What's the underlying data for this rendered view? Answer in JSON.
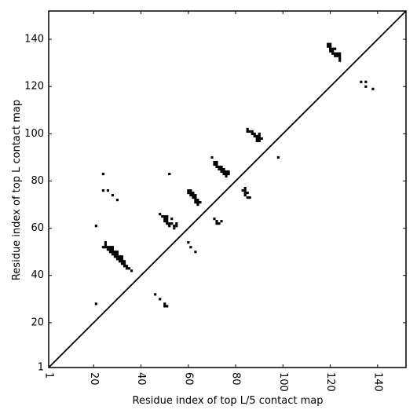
{
  "chart_data": {
    "type": "scatter",
    "title": "",
    "xlabel": "Residue index of top L/5 contact map",
    "ylabel": "Residue index of top L contact map",
    "xlim": [
      1,
      152
    ],
    "ylim": [
      1,
      152
    ],
    "xticks": [
      1,
      20,
      40,
      60,
      80,
      100,
      120,
      140
    ],
    "yticks": [
      1,
      20,
      40,
      60,
      80,
      100,
      120,
      140
    ],
    "xtick_labels": [
      "1",
      "20",
      "40",
      "60",
      "80",
      "100",
      "120",
      "140"
    ],
    "ytick_labels": [
      "1",
      "20",
      "40",
      "60",
      "80",
      "100",
      "120",
      "140"
    ],
    "xtick_rotation": 90,
    "grid": false,
    "diagonal_line": {
      "from": [
        1,
        1
      ],
      "to": [
        152,
        152
      ],
      "color": "#000000"
    },
    "marker": {
      "shape": "square",
      "color": "#000000"
    },
    "points": [
      [
        24,
        83
      ],
      [
        52,
        83
      ],
      [
        24,
        76
      ],
      [
        26,
        76
      ],
      [
        28,
        74
      ],
      [
        30,
        72
      ],
      [
        21,
        61
      ],
      [
        24,
        52
      ],
      [
        25,
        52
      ],
      [
        25,
        53
      ],
      [
        25,
        54
      ],
      [
        26,
        51
      ],
      [
        26,
        52
      ],
      [
        27,
        50
      ],
      [
        27,
        51
      ],
      [
        27,
        52
      ],
      [
        28,
        49
      ],
      [
        28,
        50
      ],
      [
        28,
        51
      ],
      [
        28,
        52
      ],
      [
        29,
        48
      ],
      [
        29,
        49
      ],
      [
        29,
        50
      ],
      [
        30,
        47
      ],
      [
        30,
        48
      ],
      [
        30,
        49
      ],
      [
        30,
        50
      ],
      [
        31,
        46
      ],
      [
        31,
        47
      ],
      [
        31,
        48
      ],
      [
        32,
        45
      ],
      [
        32,
        46
      ],
      [
        32,
        47
      ],
      [
        32,
        48
      ],
      [
        33,
        44
      ],
      [
        33,
        45
      ],
      [
        33,
        46
      ],
      [
        34,
        43
      ],
      [
        34,
        44
      ],
      [
        35,
        43
      ],
      [
        36,
        42
      ],
      [
        21,
        28
      ],
      [
        46,
        32
      ],
      [
        48,
        30
      ],
      [
        50,
        28
      ],
      [
        50,
        27
      ],
      [
        51,
        27
      ],
      [
        48,
        66
      ],
      [
        49,
        65
      ],
      [
        50,
        63
      ],
      [
        50,
        64
      ],
      [
        50,
        65
      ],
      [
        51,
        62
      ],
      [
        51,
        63
      ],
      [
        51,
        64
      ],
      [
        51,
        65
      ],
      [
        52,
        61
      ],
      [
        52,
        62
      ],
      [
        53,
        62
      ],
      [
        53,
        64
      ],
      [
        54,
        60
      ],
      [
        54,
        61
      ],
      [
        55,
        61
      ],
      [
        55,
        62
      ],
      [
        60,
        54
      ],
      [
        61,
        52
      ],
      [
        63,
        50
      ],
      [
        60,
        75
      ],
      [
        60,
        76
      ],
      [
        61,
        74
      ],
      [
        61,
        75
      ],
      [
        61,
        76
      ],
      [
        62,
        73
      ],
      [
        62,
        74
      ],
      [
        62,
        75
      ],
      [
        63,
        71
      ],
      [
        63,
        72
      ],
      [
        63,
        73
      ],
      [
        63,
        74
      ],
      [
        64,
        70
      ],
      [
        64,
        71
      ],
      [
        64,
        72
      ],
      [
        65,
        71
      ],
      [
        70,
        90
      ],
      [
        71,
        88
      ],
      [
        71,
        87
      ],
      [
        72,
        86
      ],
      [
        72,
        87
      ],
      [
        72,
        88
      ],
      [
        73,
        85
      ],
      [
        73,
        86
      ],
      [
        74,
        84
      ],
      [
        74,
        85
      ],
      [
        74,
        86
      ],
      [
        75,
        83
      ],
      [
        75,
        84
      ],
      [
        75,
        85
      ],
      [
        76,
        82
      ],
      [
        76,
        83
      ],
      [
        76,
        84
      ],
      [
        77,
        83
      ],
      [
        77,
        84
      ],
      [
        71,
        64
      ],
      [
        72,
        62
      ],
      [
        72,
        63
      ],
      [
        73,
        62
      ],
      [
        74,
        63
      ],
      [
        83,
        76
      ],
      [
        84,
        74
      ],
      [
        84,
        75
      ],
      [
        84,
        76
      ],
      [
        84,
        77
      ],
      [
        85,
        75
      ],
      [
        85,
        73
      ],
      [
        86,
        73
      ],
      [
        85,
        101
      ],
      [
        85,
        102
      ],
      [
        86,
        101
      ],
      [
        87,
        100
      ],
      [
        87,
        101
      ],
      [
        88,
        99
      ],
      [
        88,
        100
      ],
      [
        89,
        97
      ],
      [
        89,
        98
      ],
      [
        89,
        99
      ],
      [
        90,
        97
      ],
      [
        90,
        98
      ],
      [
        90,
        99
      ],
      [
        90,
        100
      ],
      [
        91,
        98
      ],
      [
        98,
        90
      ],
      [
        119,
        137
      ],
      [
        119,
        138
      ],
      [
        120,
        135
      ],
      [
        120,
        136
      ],
      [
        120,
        137
      ],
      [
        120,
        138
      ],
      [
        121,
        134
      ],
      [
        121,
        135
      ],
      [
        121,
        136
      ],
      [
        122,
        133
      ],
      [
        122,
        134
      ],
      [
        122,
        136
      ],
      [
        123,
        133
      ],
      [
        123,
        134
      ],
      [
        124,
        131
      ],
      [
        124,
        132
      ],
      [
        124,
        133
      ],
      [
        124,
        134
      ],
      [
        133,
        122
      ],
      [
        135,
        122
      ],
      [
        135,
        120
      ],
      [
        138,
        119
      ]
    ]
  }
}
